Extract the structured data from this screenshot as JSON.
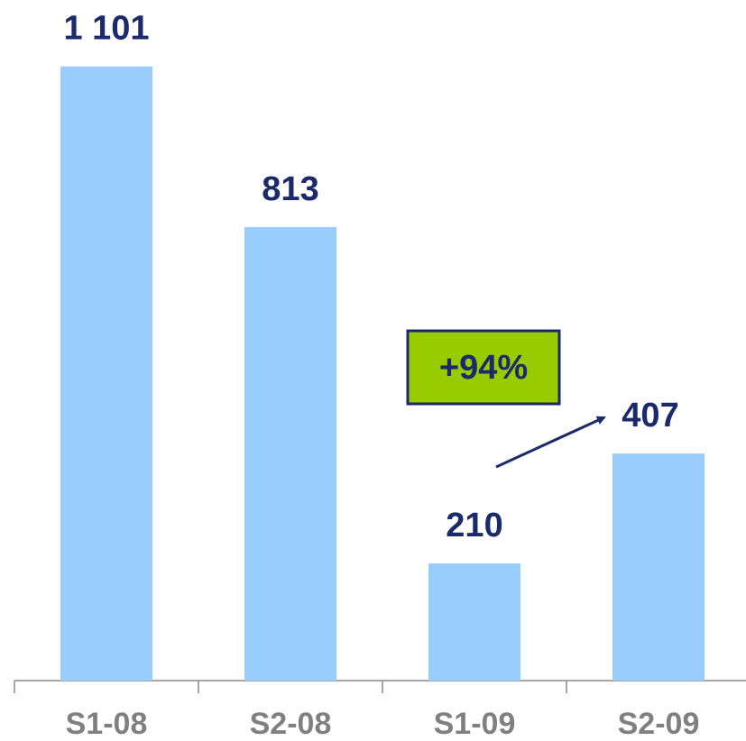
{
  "chart_data": {
    "type": "bar",
    "categories": [
      "S1-08",
      "S2-08",
      "S1-09",
      "S2-09"
    ],
    "values": [
      1101,
      813,
      210,
      407
    ],
    "value_labels": [
      "1 101",
      "813",
      "210",
      "407"
    ],
    "color": "#99ccff",
    "ylim": [
      0,
      1220
    ],
    "annotations": [
      {
        "text": "+94%",
        "color": "#99cc00"
      }
    ]
  }
}
